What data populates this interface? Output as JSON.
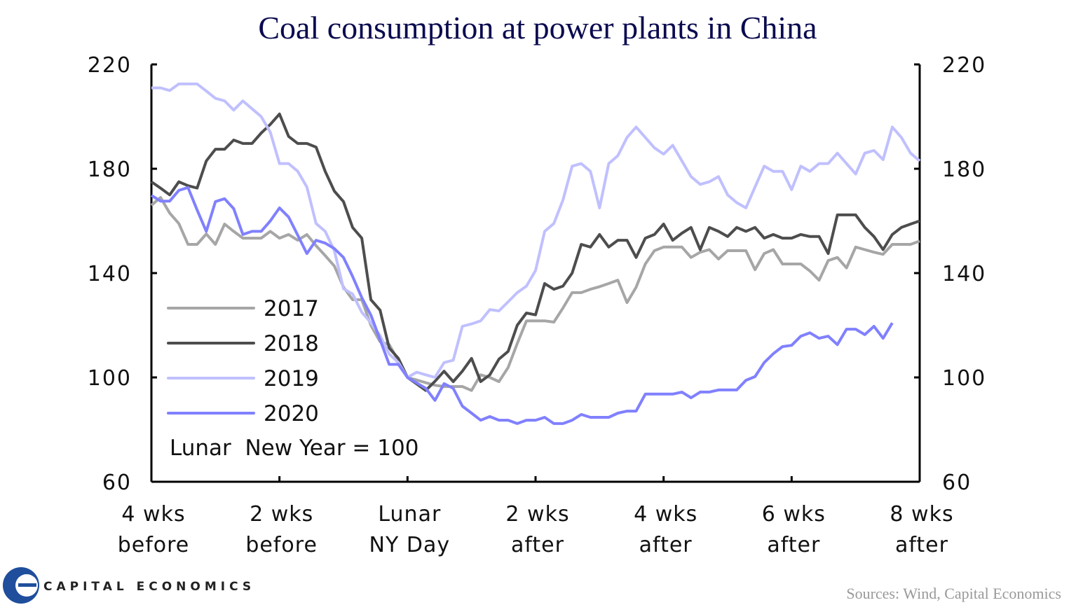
{
  "chart_data": {
    "type": "line",
    "title": "Coal consumption at power plants in China",
    "xlabel": "",
    "ylabel": "",
    "x_units": "days relative to Lunar New Year",
    "x_start": -28,
    "xlim": [
      -28,
      56
    ],
    "ylim": [
      60,
      220
    ],
    "yticks": [
      60,
      100,
      140,
      180,
      220
    ],
    "ytick_labels": [
      "60",
      "100",
      "140",
      "180",
      "220"
    ],
    "xticks": [
      -28,
      -14,
      0,
      14,
      28,
      42,
      56
    ],
    "xtick_labels": [
      [
        "4 wks",
        "before"
      ],
      [
        "2 wks",
        "before"
      ],
      [
        "Lunar",
        "NY Day"
      ],
      [
        "2 wks",
        "after"
      ],
      [
        "4 wks",
        "after"
      ],
      [
        "6 wks",
        "after"
      ],
      [
        "8 wks",
        "after"
      ]
    ],
    "grid": false,
    "legend_placement": "bottom-left",
    "annotation": "Lunar  New Year = 100",
    "series": [
      {
        "name": "2017",
        "color": "#a6a6a6",
        "values": [
          166,
          169,
          163,
          159,
          151,
          151,
          155,
          151,
          158.8,
          156,
          153.4,
          153.4,
          153.4,
          156,
          153.4,
          154.8,
          152.6,
          154.8,
          150.5,
          146.7,
          142.7,
          134.6,
          129.8,
          129.8,
          120,
          113.7,
          112.6,
          106.4,
          100,
          99,
          98,
          97,
          96.5,
          96.5,
          96.5,
          95,
          101,
          100,
          98.4,
          103.8,
          113,
          121.7,
          121.7,
          121.7,
          121.2,
          126.6,
          132.5,
          132.5,
          133.8,
          134.8,
          136,
          137.3,
          128.7,
          134.6,
          143.5,
          148.6,
          150,
          150,
          150,
          146,
          148,
          149,
          145.4,
          148.6,
          148.6,
          148.6,
          141.3,
          147.5,
          149,
          143.5,
          143.5,
          143.5,
          140.8,
          137.3,
          144.8,
          146,
          142,
          150,
          149,
          148,
          147.2,
          151,
          151,
          151,
          152.3
        ]
      },
      {
        "name": "2018",
        "color": "#4d4d4d",
        "values": [
          175,
          172.6,
          170,
          175,
          173.5,
          172.6,
          183,
          187.5,
          187.5,
          191,
          189.7,
          189.7,
          193.7,
          197,
          201,
          192.4,
          189.7,
          189.7,
          188.3,
          179,
          171.4,
          167.4,
          157.5,
          153.4,
          129.8,
          125.8,
          111.3,
          107.3,
          100,
          97.5,
          95,
          98.5,
          102.4,
          98.4,
          102.4,
          107.3,
          98.4,
          101,
          107,
          110,
          120,
          124.7,
          124,
          136,
          133.8,
          135,
          140,
          151,
          150,
          154.8,
          150,
          152.6,
          152.6,
          146,
          153.4,
          154.8,
          158.8,
          152.6,
          155.3,
          157.5,
          149,
          157.5,
          156,
          154,
          157.5,
          156,
          157.5,
          153.4,
          154.8,
          153.4,
          153.4,
          154.8,
          154,
          154,
          147.5,
          162.3,
          162.3,
          162.3,
          157.5,
          154,
          149,
          154.8,
          157.5,
          158.8,
          160
        ]
      },
      {
        "name": "2019",
        "color": "#c0c0ff",
        "values": [
          211,
          211,
          210,
          212.5,
          212.5,
          212.5,
          209.8,
          207,
          206,
          202.5,
          206,
          203,
          200,
          194,
          182,
          182,
          179,
          173,
          159,
          156,
          148.6,
          134,
          132,
          125,
          121,
          116,
          109,
          105.7,
          100,
          102,
          101,
          100,
          105.7,
          106.6,
          119.6,
          120.5,
          121.7,
          126,
          125.5,
          129,
          132.5,
          135,
          141,
          156,
          159,
          168,
          181,
          182,
          179,
          165,
          182,
          185,
          192,
          196,
          192,
          188,
          185.6,
          189,
          183,
          177,
          174,
          175,
          177,
          170,
          167,
          165,
          173,
          181,
          179,
          179,
          172,
          181,
          179,
          182,
          182,
          186,
          182,
          178,
          186,
          187,
          183.5,
          196,
          192,
          186,
          183
        ]
      },
      {
        "name": "2020",
        "color": "#8080ff",
        "values": [
          169.8,
          167.6,
          167.6,
          171.7,
          172.8,
          164.2,
          156,
          167.4,
          168.5,
          164.7,
          154.8,
          156,
          156,
          160,
          165,
          161.5,
          154.5,
          147.5,
          152.6,
          151.5,
          149.4,
          146,
          138.7,
          130.6,
          123.9,
          114.5,
          105,
          105,
          100,
          97.9,
          95.8,
          91.2,
          97.6,
          95.8,
          89,
          86.3,
          83.6,
          85,
          83.6,
          83.6,
          82.3,
          83.6,
          83.6,
          84.7,
          82.3,
          82.3,
          83.6,
          85.8,
          84.7,
          84.7,
          84.7,
          86.3,
          87.1,
          87.1,
          93.6,
          93.6,
          93.6,
          93.6,
          94.4,
          92.2,
          94.4,
          94.4,
          95.2,
          95.2,
          95.2,
          98.9,
          100.3,
          105.7,
          109.1,
          111.8,
          112.3,
          115.8,
          117.1,
          115,
          115.8,
          112.6,
          118.5,
          118.5,
          116.4,
          119.6,
          115,
          120.9
        ]
      }
    ]
  },
  "footer": {
    "sources": "Sources: Wind, Capital Economics",
    "logo_text": "CAPITAL ECONOMICS"
  }
}
